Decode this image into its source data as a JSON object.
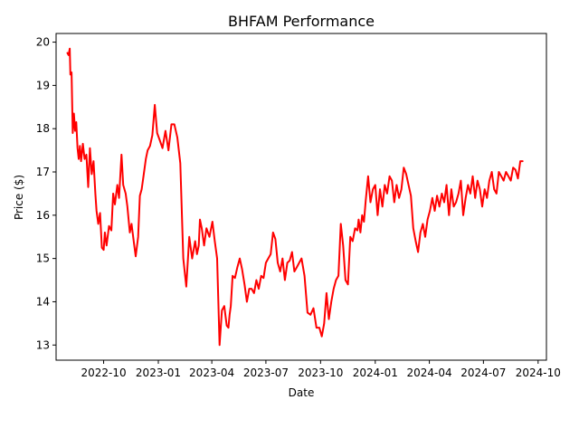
{
  "chart_data": {
    "type": "line",
    "title": "BHFAM Performance",
    "xlabel": "Date",
    "ylabel": "Price ($)",
    "xlim": [
      "2022-07-13",
      "2024-10-15"
    ],
    "ylim": [
      12.65,
      20.2
    ],
    "x_ticks": [
      {
        "date": "2022-10-01",
        "label": "2022-10"
      },
      {
        "date": "2023-01-01",
        "label": "2023-01"
      },
      {
        "date": "2023-04-01",
        "label": "2023-04"
      },
      {
        "date": "2023-07-01",
        "label": "2023-07"
      },
      {
        "date": "2023-10-01",
        "label": "2023-10"
      },
      {
        "date": "2024-01-01",
        "label": "2024-01"
      },
      {
        "date": "2024-04-01",
        "label": "2024-04"
      },
      {
        "date": "2024-07-01",
        "label": "2024-07"
      },
      {
        "date": "2024-10-01",
        "label": "2024-10"
      }
    ],
    "y_ticks": [
      13,
      14,
      15,
      16,
      17,
      18,
      19,
      20
    ],
    "grid": false,
    "line_color": "#ff0000",
    "series": [
      {
        "x": [
          "2022-08-01",
          "2022-08-03",
          "2022-08-05",
          "2022-08-06",
          "2022-08-08",
          "2022-08-10",
          "2022-08-12",
          "2022-08-14",
          "2022-08-16",
          "2022-08-18",
          "2022-08-20",
          "2022-08-22",
          "2022-08-24",
          "2022-08-27",
          "2022-08-30",
          "2022-09-02",
          "2022-09-05",
          "2022-09-08",
          "2022-09-11",
          "2022-09-14",
          "2022-09-17",
          "2022-09-19",
          "2022-09-22",
          "2022-09-25",
          "2022-09-28",
          "2022-10-01",
          "2022-10-03",
          "2022-10-06",
          "2022-10-10",
          "2022-10-14",
          "2022-10-17",
          "2022-10-20",
          "2022-10-24",
          "2022-10-27",
          "2022-10-31",
          "2022-11-03",
          "2022-11-07",
          "2022-11-10",
          "2022-11-14",
          "2022-11-17",
          "2022-11-21",
          "2022-11-24",
          "2022-11-28",
          "2022-12-01",
          "2022-12-04",
          "2022-12-07",
          "2022-12-11",
          "2022-12-14",
          "2022-12-18",
          "2022-12-22",
          "2022-12-26",
          "2022-12-30",
          "2023-01-03",
          "2023-01-08",
          "2023-01-13",
          "2023-01-18",
          "2023-01-23",
          "2023-01-28",
          "2023-02-02",
          "2023-02-07",
          "2023-02-12",
          "2023-02-17",
          "2023-02-22",
          "2023-02-27",
          "2023-03-04",
          "2023-03-07",
          "2023-03-10",
          "2023-03-12",
          "2023-03-15",
          "2023-03-19",
          "2023-03-23",
          "2023-03-28",
          "2023-04-02",
          "2023-04-06",
          "2023-04-10",
          "2023-04-14",
          "2023-04-18",
          "2023-04-22",
          "2023-04-26",
          "2023-04-29",
          "2023-05-01",
          "2023-05-03",
          "2023-05-06",
          "2023-05-10",
          "2023-05-14",
          "2023-05-18",
          "2023-05-22",
          "2023-05-26",
          "2023-05-30",
          "2023-06-03",
          "2023-06-07",
          "2023-06-11",
          "2023-06-15",
          "2023-06-19",
          "2023-06-23",
          "2023-06-27",
          "2023-07-01",
          "2023-07-05",
          "2023-07-09",
          "2023-07-13",
          "2023-07-17",
          "2023-07-21",
          "2023-07-25",
          "2023-07-29",
          "2023-08-02",
          "2023-08-06",
          "2023-08-10",
          "2023-08-14",
          "2023-08-18",
          "2023-08-22",
          "2023-08-26",
          "2023-08-30",
          "2023-09-04",
          "2023-09-09",
          "2023-09-14",
          "2023-09-19",
          "2023-09-24",
          "2023-09-29",
          "2023-10-03",
          "2023-10-07",
          "2023-10-11",
          "2023-10-15",
          "2023-10-19",
          "2023-10-23",
          "2023-10-27",
          "2023-10-31",
          "2023-11-04",
          "2023-11-08",
          "2023-11-12",
          "2023-11-16",
          "2023-11-20",
          "2023-11-24",
          "2023-11-28",
          "2023-12-02",
          "2023-12-04",
          "2023-12-07",
          "2023-12-10",
          "2023-12-13",
          "2023-12-16",
          "2023-12-20",
          "2023-12-24",
          "2023-12-28",
          "2024-01-01",
          "2024-01-05",
          "2024-01-09",
          "2024-01-13",
          "2024-01-17",
          "2024-01-21",
          "2024-01-25",
          "2024-01-29",
          "2024-02-02",
          "2024-02-06",
          "2024-02-10",
          "2024-02-14",
          "2024-02-18",
          "2024-02-22",
          "2024-02-26",
          "2024-03-01",
          "2024-03-05",
          "2024-03-09",
          "2024-03-13",
          "2024-03-17",
          "2024-03-21",
          "2024-03-25",
          "2024-03-29",
          "2024-04-02",
          "2024-04-06",
          "2024-04-10",
          "2024-04-14",
          "2024-04-18",
          "2024-04-22",
          "2024-04-26",
          "2024-04-30",
          "2024-05-04",
          "2024-05-08",
          "2024-05-12",
          "2024-05-16",
          "2024-05-20",
          "2024-05-24",
          "2024-05-28",
          "2024-06-01",
          "2024-06-05",
          "2024-06-09",
          "2024-06-13",
          "2024-06-17",
          "2024-06-21",
          "2024-06-25",
          "2024-06-29",
          "2024-07-03",
          "2024-07-07",
          "2024-07-11",
          "2024-07-15",
          "2024-07-19",
          "2024-07-23",
          "2024-07-27",
          "2024-07-31",
          "2024-08-04",
          "2024-08-08",
          "2024-08-12",
          "2024-08-16",
          "2024-08-20",
          "2024-08-24",
          "2024-08-28",
          "2024-09-01",
          "2024-09-05"
        ],
        "y": [
          19.75,
          19.7,
          19.85,
          19.25,
          19.3,
          17.9,
          18.35,
          17.95,
          18.15,
          17.55,
          17.3,
          17.6,
          17.25,
          17.65,
          17.3,
          17.4,
          16.65,
          17.55,
          16.95,
          17.25,
          16.5,
          16.1,
          15.8,
          16.05,
          15.25,
          15.2,
          15.6,
          15.3,
          15.75,
          15.65,
          16.5,
          16.25,
          16.7,
          16.4,
          17.4,
          16.7,
          16.5,
          16.2,
          15.6,
          15.8,
          15.35,
          15.05,
          15.5,
          16.45,
          16.6,
          16.9,
          17.3,
          17.5,
          17.6,
          17.85,
          18.55,
          17.9,
          17.75,
          17.55,
          17.95,
          17.5,
          18.1,
          18.1,
          17.8,
          17.2,
          15.0,
          14.35,
          15.5,
          15.0,
          15.4,
          15.1,
          15.3,
          15.9,
          15.7,
          15.3,
          15.7,
          15.5,
          15.85,
          15.4,
          15.0,
          13.0,
          13.8,
          13.9,
          13.45,
          13.4,
          13.7,
          13.9,
          14.6,
          14.55,
          14.8,
          15.0,
          14.75,
          14.4,
          14.0,
          14.3,
          14.3,
          14.2,
          14.5,
          14.3,
          14.6,
          14.55,
          14.9,
          15.0,
          15.1,
          15.6,
          15.45,
          14.9,
          14.7,
          15.0,
          14.5,
          14.9,
          14.95,
          15.15,
          14.7,
          14.8,
          14.9,
          15.0,
          14.6,
          13.75,
          13.7,
          13.85,
          13.4,
          13.4,
          13.2,
          13.5,
          14.2,
          13.6,
          14.0,
          14.3,
          14.5,
          14.6,
          15.8,
          15.3,
          14.5,
          14.4,
          15.5,
          15.4,
          15.7,
          15.65,
          15.9,
          15.6,
          16.0,
          15.85,
          16.35,
          16.9,
          16.3,
          16.6,
          16.7,
          16.0,
          16.6,
          16.2,
          16.7,
          16.5,
          16.9,
          16.8,
          16.3,
          16.7,
          16.4,
          16.6,
          17.1,
          16.95,
          16.7,
          16.45,
          15.7,
          15.4,
          15.15,
          15.6,
          15.8,
          15.5,
          15.9,
          16.1,
          16.4,
          16.1,
          16.45,
          16.2,
          16.5,
          16.3,
          16.7,
          16.0,
          16.6,
          16.2,
          16.3,
          16.5,
          16.8,
          16.0,
          16.4,
          16.7,
          16.5,
          16.9,
          16.4,
          16.8,
          16.6,
          16.2,
          16.6,
          16.4,
          16.8,
          17.0,
          16.6,
          16.5,
          17.0,
          16.9,
          16.8,
          17.0,
          16.9,
          16.8,
          17.1,
          17.05,
          16.85,
          17.25,
          17.25
        ]
      }
    ]
  }
}
